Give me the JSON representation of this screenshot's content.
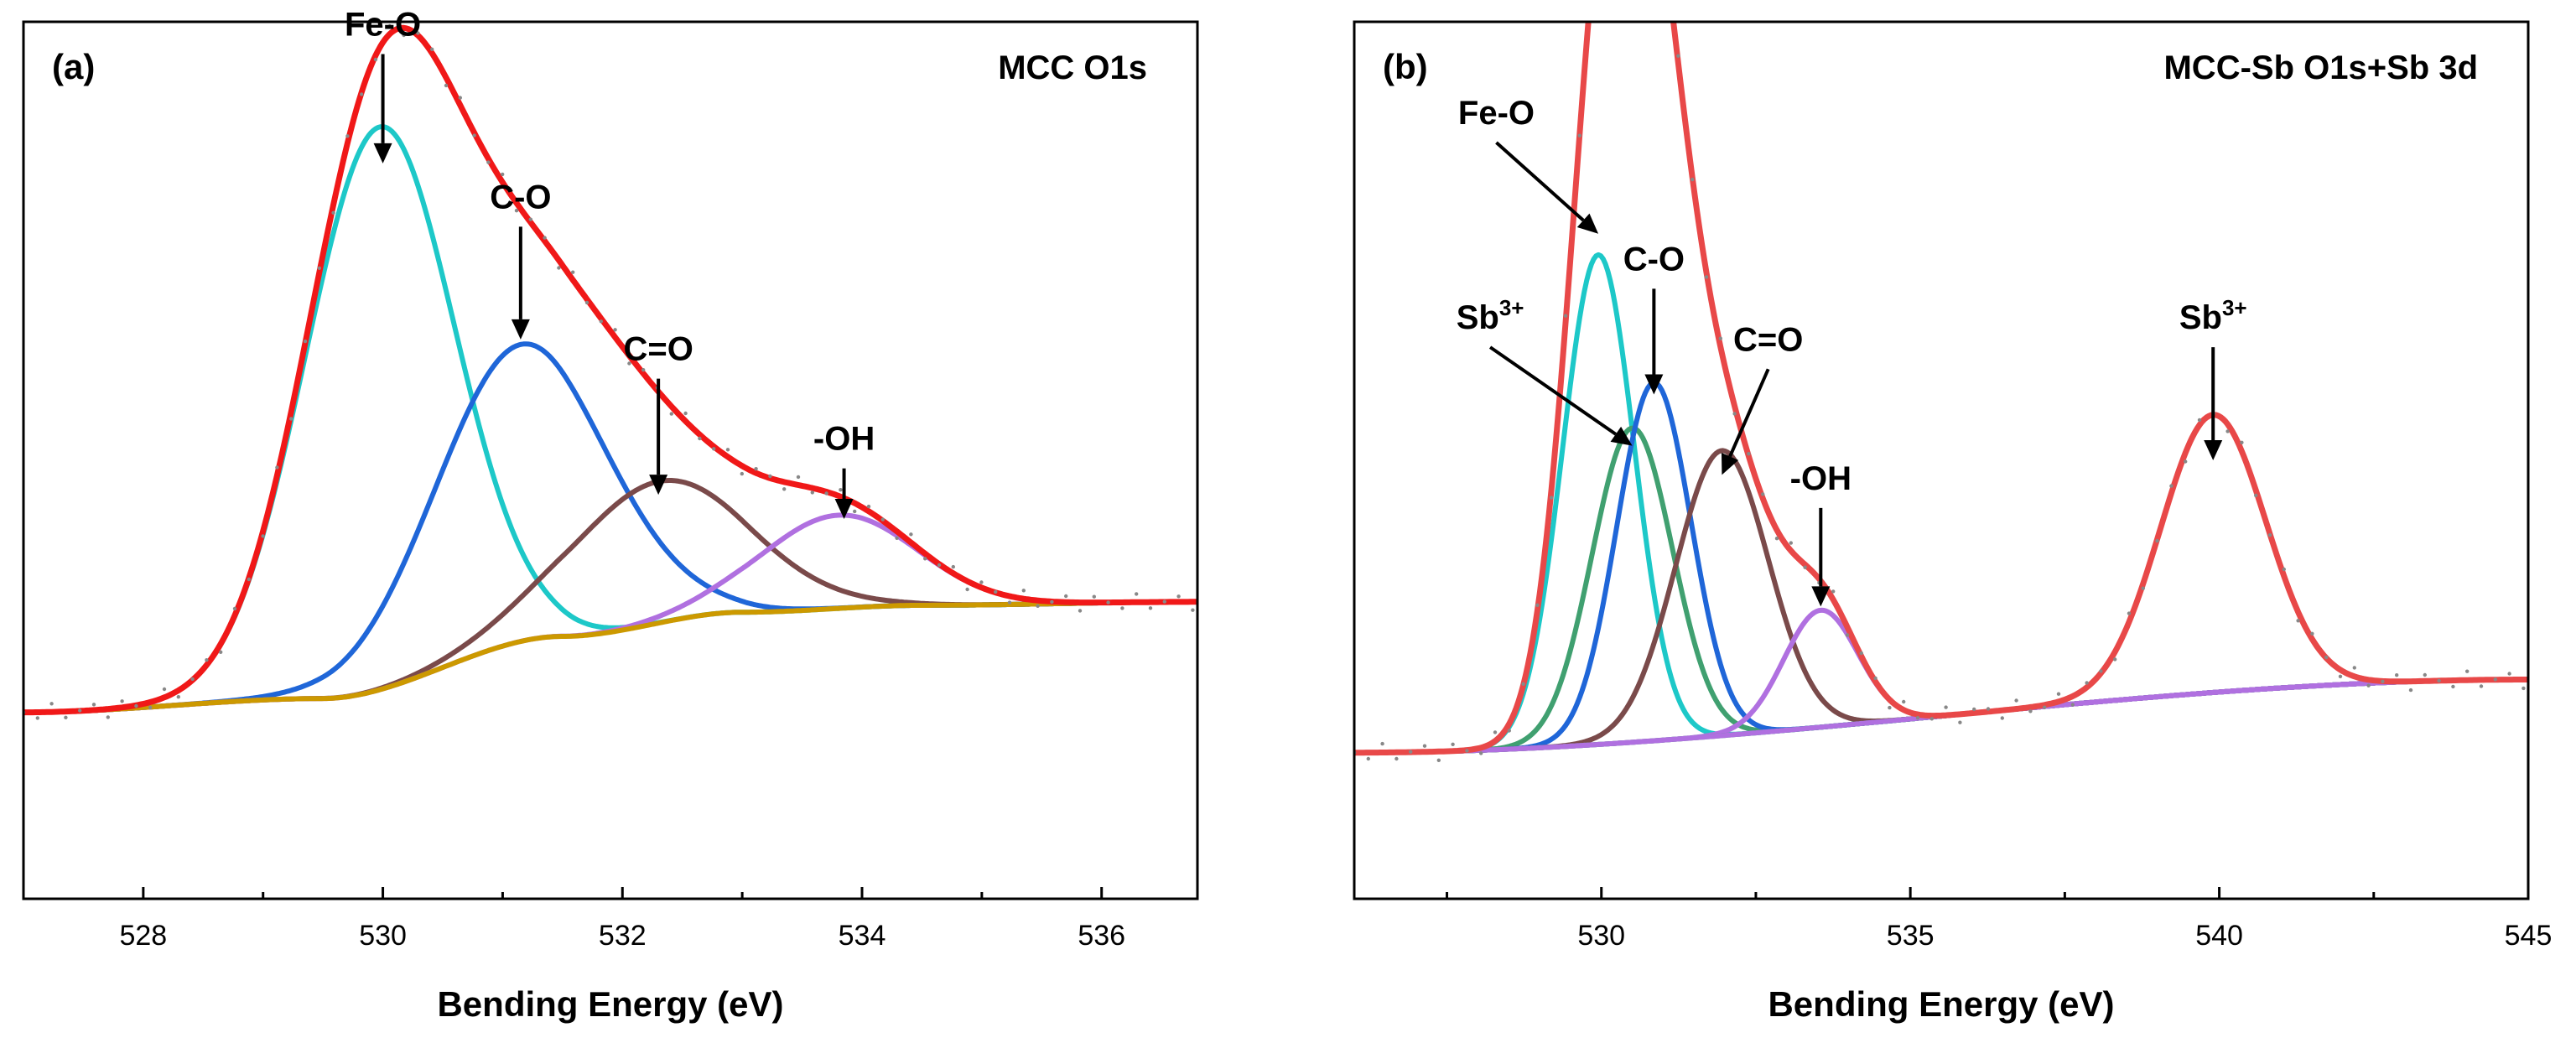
{
  "chart_data": [
    {
      "type": "line",
      "panel_label": "(a)",
      "title": "MCC O1s",
      "xlabel": "Bending Energy (eV)",
      "ylabel": "",
      "xlim": [
        527,
        536.8
      ],
      "xticks": [
        528,
        530,
        532,
        534,
        536
      ],
      "x_minor_ticks": [
        529,
        531,
        533,
        535
      ],
      "ylim": [
        -0.25,
        1.02
      ],
      "background": {
        "name": "Background",
        "color": "#CC9900",
        "points": [
          [
            527,
            0.02
          ],
          [
            529.5,
            0.04
          ],
          [
            531.5,
            0.13
          ],
          [
            533,
            0.165
          ],
          [
            534.5,
            0.175
          ],
          [
            536.8,
            0.18
          ]
        ]
      },
      "peaks": [
        {
          "name": "Fe-O",
          "color": "#1DC8C8",
          "center": 529.97,
          "height": 0.815,
          "sigma": 0.62
        },
        {
          "name": "C-O",
          "color": "#1F66D8",
          "center": 531.15,
          "height": 0.43,
          "sigma": 0.72
        },
        {
          "name": "C=O",
          "color": "#7A4A4A",
          "center": 532.3,
          "height": 0.205,
          "sigma": 0.75
        },
        {
          "name": "-OH",
          "color": "#B070E0",
          "center": 533.8,
          "height": 0.135,
          "sigma": 0.65
        }
      ],
      "envelope": {
        "name": "Fitted envelope",
        "color": "#F01818"
      },
      "raw_data": {
        "name": "Raw data",
        "color": "#888888"
      },
      "annotations": [
        {
          "text": "Fe-O",
          "sup": "",
          "x": 530.0,
          "y": 0.815,
          "label_x": 530.0,
          "label_y": 1.0
        },
        {
          "text": "C-O",
          "sup": "",
          "x": 531.15,
          "y": 0.56,
          "label_x": 531.15,
          "label_y": 0.75
        },
        {
          "text": "C=O",
          "sup": "",
          "x": 532.3,
          "y": 0.335,
          "label_x": 532.3,
          "label_y": 0.53
        },
        {
          "text": "-OH",
          "sup": "",
          "x": 533.85,
          "y": 0.3,
          "label_x": 533.85,
          "label_y": 0.4
        }
      ]
    },
    {
      "type": "line",
      "panel_label": "(b)",
      "title": "MCC-Sb O1s+Sb 3d",
      "xlabel": "Bending Energy (eV)",
      "ylabel": "",
      "xlim": [
        526,
        545
      ],
      "xticks": [
        530,
        535,
        540,
        545
      ],
      "x_minor_ticks": [
        527.5,
        532.5,
        537.5,
        542.5
      ],
      "ylim": [
        -0.2,
        1.0
      ],
      "background": {
        "name": "Background",
        "color": "#B070E0",
        "points": [
          [
            526,
            0.0
          ],
          [
            545,
            0.1
          ]
        ]
      },
      "peaks": [
        {
          "name": "Fe-O",
          "color": "#1DC8C8",
          "center": 529.95,
          "height": 0.67,
          "sigma": 0.58
        },
        {
          "name": "Sb3+ (3d5/2)",
          "color": "#40A070",
          "center": 530.5,
          "height": 0.43,
          "sigma": 0.65
        },
        {
          "name": "C-O",
          "color": "#1F66D8",
          "center": 530.85,
          "height": 0.49,
          "sigma": 0.6
        },
        {
          "name": "C=O",
          "color": "#7A4A4A",
          "center": 531.95,
          "height": 0.39,
          "sigma": 0.75
        },
        {
          "name": "-OH",
          "color": "#B070E0",
          "center": 533.55,
          "height": 0.16,
          "sigma": 0.6
        },
        {
          "name": "Sb3+ (3d3/2)",
          "color": "#40A070",
          "center": 539.9,
          "height": 0.38,
          "sigma": 0.85
        }
      ],
      "envelope": {
        "name": "Fitted envelope",
        "color": "#E84848"
      },
      "raw_data": {
        "name": "Raw data",
        "color": "#888888"
      },
      "annotations": [
        {
          "text": "Fe-O",
          "sup": "",
          "x": 529.95,
          "y": 0.71,
          "label_x": 528.3,
          "label_y": 0.86
        },
        {
          "text": "C-O",
          "sup": "",
          "x": 530.85,
          "y": 0.49,
          "label_x": 530.85,
          "label_y": 0.66
        },
        {
          "text": "Sb",
          "sup": "3+",
          "x": 530.5,
          "y": 0.42,
          "label_x": 528.2,
          "label_y": 0.58
        },
        {
          "text": "C=O",
          "sup": "",
          "x": 531.95,
          "y": 0.38,
          "label_x": 532.7,
          "label_y": 0.55
        },
        {
          "text": "-OH",
          "sup": "",
          "x": 533.55,
          "y": 0.2,
          "label_x": 533.55,
          "label_y": 0.36
        },
        {
          "text": "Sb",
          "sup": "3+",
          "x": 539.9,
          "y": 0.4,
          "label_x": 539.9,
          "label_y": 0.58
        }
      ]
    }
  ]
}
